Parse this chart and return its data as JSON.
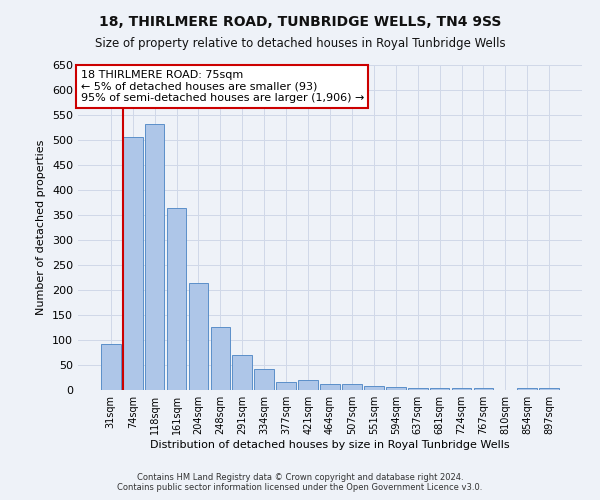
{
  "title": "18, THIRLMERE ROAD, TUNBRIDGE WELLS, TN4 9SS",
  "subtitle": "Size of property relative to detached houses in Royal Tunbridge Wells",
  "xlabel": "Distribution of detached houses by size in Royal Tunbridge Wells",
  "ylabel": "Number of detached properties",
  "footer1": "Contains HM Land Registry data © Crown copyright and database right 2024.",
  "footer2": "Contains public sector information licensed under the Open Government Licence v3.0.",
  "categories": [
    "31sqm",
    "74sqm",
    "118sqm",
    "161sqm",
    "204sqm",
    "248sqm",
    "291sqm",
    "334sqm",
    "377sqm",
    "421sqm",
    "464sqm",
    "507sqm",
    "551sqm",
    "594sqm",
    "637sqm",
    "681sqm",
    "724sqm",
    "767sqm",
    "810sqm",
    "854sqm",
    "897sqm"
  ],
  "bar_heights": [
    93,
    507,
    533,
    365,
    215,
    126,
    70,
    43,
    16,
    20,
    12,
    12,
    8,
    6,
    5,
    5,
    4,
    5,
    0,
    4,
    5
  ],
  "bar_color": "#aec6e8",
  "bar_edge_color": "#5b8fc9",
  "ylim": [
    0,
    650
  ],
  "yticks": [
    0,
    50,
    100,
    150,
    200,
    250,
    300,
    350,
    400,
    450,
    500,
    550,
    600,
    650
  ],
  "pct_smaller": 5,
  "n_smaller": 93,
  "pct_larger_semi": 95,
  "n_larger_semi": 1906,
  "vline_bar_index": 1,
  "annotation_box_color": "#ffffff",
  "annotation_box_edge": "#cc0000",
  "vline_color": "#cc0000",
  "grid_color": "#d0d8e8",
  "background_color": "#eef2f8"
}
